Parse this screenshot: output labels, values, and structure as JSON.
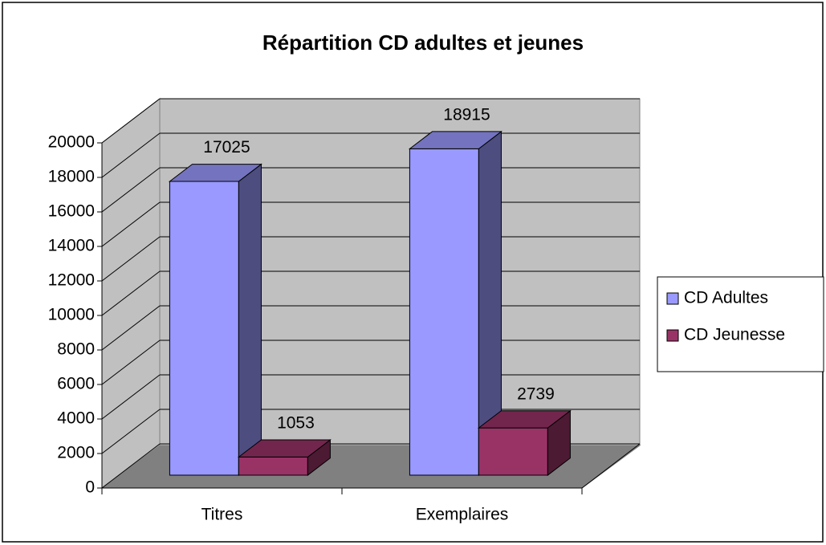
{
  "chart_data": {
    "type": "bar3d",
    "title": "Répartition CD adultes et jeunes",
    "categories": [
      "Titres",
      "Exemplaires"
    ],
    "series": [
      {
        "name": "CD Adultes",
        "color": "#9999ff",
        "values": [
          17025,
          18915
        ]
      },
      {
        "name": "CD Jeunesse",
        "color": "#993366",
        "values": [
          1053,
          2739
        ]
      }
    ],
    "ylim": [
      0,
      20000
    ],
    "yticks": [
      0,
      2000,
      4000,
      6000,
      8000,
      10000,
      12000,
      14000,
      16000,
      18000,
      20000
    ],
    "grid": true,
    "legend": "right"
  }
}
